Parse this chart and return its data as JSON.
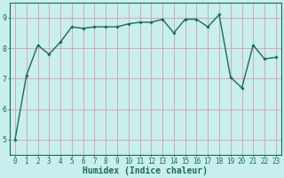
{
  "x": [
    0,
    1,
    2,
    3,
    4,
    5,
    6,
    7,
    8,
    9,
    10,
    11,
    12,
    13,
    14,
    15,
    16,
    17,
    18,
    19,
    20,
    21,
    22,
    23
  ],
  "y": [
    5.0,
    7.1,
    8.1,
    7.8,
    8.2,
    8.7,
    8.65,
    8.7,
    8.7,
    8.7,
    8.8,
    8.85,
    8.85,
    8.95,
    8.5,
    8.95,
    8.95,
    8.7,
    9.1,
    7.05,
    6.7,
    8.1,
    7.65,
    7.7
  ],
  "line_color": "#1a6b5a",
  "marker": "D",
  "marker_size": 1.8,
  "line_width": 1.0,
  "bg_color": "#c8eeed",
  "grid_color": "#d4a0a0",
  "axis_color": "#1a6b5a",
  "xlabel": "Humidex (Indice chaleur)",
  "ylim": [
    4.5,
    9.5
  ],
  "xlim": [
    -0.5,
    23.5
  ],
  "yticks": [
    5,
    6,
    7,
    8,
    9
  ],
  "xticks": [
    0,
    1,
    2,
    3,
    4,
    5,
    6,
    7,
    8,
    9,
    10,
    11,
    12,
    13,
    14,
    15,
    16,
    17,
    18,
    19,
    20,
    21,
    22,
    23
  ],
  "tick_fontsize": 5.5,
  "xlabel_fontsize": 7.0
}
